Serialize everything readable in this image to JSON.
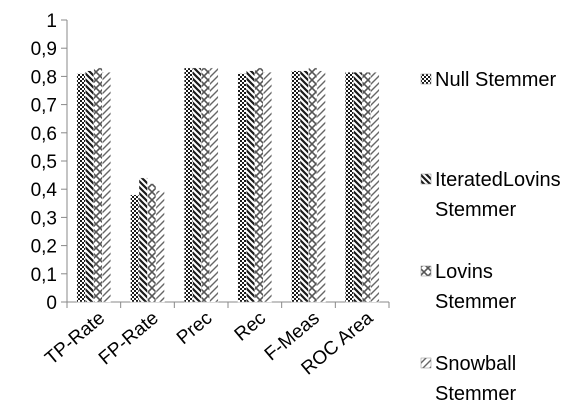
{
  "chart_data": {
    "type": "bar",
    "categories": [
      "TP-Rate",
      "FP-Rate",
      "Prec",
      "Rec",
      "F-Meas",
      "ROC Area"
    ],
    "series": [
      {
        "name": "Null Stemmer",
        "values": [
          0.81,
          0.38,
          0.83,
          0.81,
          0.82,
          0.815
        ]
      },
      {
        "name": "IteratedLovins Stemmer",
        "values": [
          0.82,
          0.44,
          0.83,
          0.82,
          0.82,
          0.815
        ]
      },
      {
        "name": "Lovins Stemmer",
        "values": [
          0.83,
          0.42,
          0.83,
          0.83,
          0.83,
          0.815
        ]
      },
      {
        "name": "Snowball Stemmer",
        "values": [
          0.815,
          0.395,
          0.83,
          0.815,
          0.82,
          0.815
        ]
      }
    ],
    "legend_lines": [
      [
        "Null Stemmer"
      ],
      [
        "IteratedLovins",
        "Stemmer"
      ],
      [
        "Lovins",
        "Stemmer"
      ],
      [
        "Snowball",
        "Stemmer"
      ]
    ],
    "y_ticks": [
      "0",
      "0,1",
      "0,2",
      "0,3",
      "0,4",
      "0,5",
      "0,6",
      "0,7",
      "0,8",
      "0,9",
      "1"
    ],
    "ylim": [
      0,
      1
    ],
    "grid": false,
    "legend_position": "right",
    "colors": {
      "axis": "#888888",
      "text": "#000000",
      "dark": "#1a1a1a",
      "medium": "#555555"
    }
  }
}
